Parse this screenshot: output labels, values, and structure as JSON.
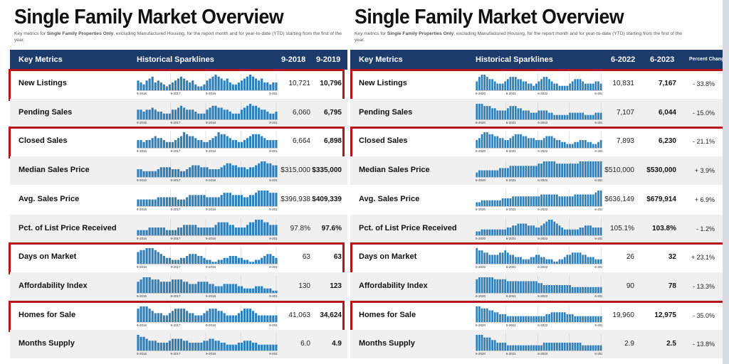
{
  "colors": {
    "header": "#1b3b6a",
    "bar": "#2f7fb8",
    "highlight": "#b8141b"
  },
  "panels": [
    {
      "title": "Single Family Market Overview",
      "subtitle_pre": "Key metrics for ",
      "subtitle_bold": "Single Family Properties Only",
      "subtitle_post": ", excluding Manufactured Housing, for the report month and for year-to-date (YTD) starting from the first of the year.",
      "headers": {
        "metrics": "Key Metrics",
        "sparklines": "Historical Sparklines",
        "col1": "9-2018",
        "col2": "9-2019"
      },
      "axis_labels": [
        "9-2016",
        "9-2017",
        "9-2018",
        "9-2019"
      ],
      "rows": [
        {
          "label": "New Listings",
          "v1": "10,721",
          "v2": "10,796",
          "highlighted": true
        },
        {
          "label": "Pending Sales",
          "v1": "6,060",
          "v2": "6,795",
          "highlighted": false
        },
        {
          "label": "Closed Sales",
          "v1": "6,664",
          "v2": "6,898",
          "highlighted": true
        },
        {
          "label": "Median Sales Price",
          "v1": "$315,000",
          "v2": "$335,000",
          "highlighted": false
        },
        {
          "label": "Avg. Sales Price",
          "v1": "$396,938",
          "v2": "$409,339",
          "highlighted": false
        },
        {
          "label": "Pct. of List Price Received",
          "v1": "97.8%",
          "v2": "97.6%",
          "highlighted": false
        },
        {
          "label": "Days on Market",
          "v1": "63",
          "v2": "63",
          "highlighted": true
        },
        {
          "label": "Affordability Index",
          "v1": "130",
          "v2": "123",
          "highlighted": false
        },
        {
          "label": "Homes for Sale",
          "v1": "41,063",
          "v2": "34,624",
          "highlighted": true
        },
        {
          "label": "Months Supply",
          "v1": "6.0",
          "v2": "4.9",
          "highlighted": false
        }
      ]
    },
    {
      "title": "Single Family Market Overview",
      "subtitle_pre": "Key metrics for ",
      "subtitle_bold": "Single Family Properties Only",
      "subtitle_post": ", excluding Manufactured Housing, for the report month and for year-to-date (YTD) starting from the first of the year.",
      "headers": {
        "metrics": "Key Metrics",
        "sparklines": "Historical Sparklines",
        "col1": "6-2022",
        "col2": "6-2023",
        "pct": "Percent Change"
      },
      "axis_labels": [
        "6-2020",
        "6-2021",
        "6-2022",
        "6-2023"
      ],
      "rows": [
        {
          "label": "New Listings",
          "v1": "10,831",
          "v2": "7,167",
          "pct": "- 33.8%",
          "highlighted": true
        },
        {
          "label": "Pending Sales",
          "v1": "7,107",
          "v2": "6,044",
          "pct": "- 15.0%",
          "highlighted": false
        },
        {
          "label": "Closed Sales",
          "v1": "7,893",
          "v2": "6,230",
          "pct": "- 21.1%",
          "highlighted": true
        },
        {
          "label": "Median Sales Price",
          "v1": "$510,000",
          "v2": "$530,000",
          "pct": "+ 3.9%",
          "highlighted": false
        },
        {
          "label": "Avg. Sales Price",
          "v1": "$636,149",
          "v2": "$679,914",
          "pct": "+ 6.9%",
          "highlighted": false
        },
        {
          "label": "Pct. of List Price Received",
          "v1": "105.1%",
          "v2": "103.8%",
          "pct": "- 1.2%",
          "highlighted": false
        },
        {
          "label": "Days on Market",
          "v1": "26",
          "v2": "32",
          "pct": "+ 23.1%",
          "highlighted": true
        },
        {
          "label": "Affordability Index",
          "v1": "90",
          "v2": "78",
          "pct": "- 13.3%",
          "highlighted": false
        },
        {
          "label": "Homes for Sale",
          "v1": "19,960",
          "v2": "12,975",
          "pct": "- 35.0%",
          "highlighted": true
        },
        {
          "label": "Months Supply",
          "v1": "2.9",
          "v2": "2.5",
          "pct": "- 13.8%",
          "highlighted": false
        }
      ]
    }
  ],
  "chart_data": {
    "type": "bar",
    "description_note": "",
    "sparklines": {
      "left": {
        "New Listings": [
          5,
          4,
          3,
          5,
          6,
          7,
          4,
          5,
          4,
          3,
          2,
          3,
          4,
          5,
          6,
          7,
          6,
          5,
          4,
          5,
          3,
          2,
          2,
          3,
          5,
          6,
          7,
          8,
          7,
          6,
          5,
          6,
          4,
          3,
          3,
          4,
          5,
          6,
          7,
          8,
          7,
          6,
          5,
          6,
          4,
          4,
          3,
          4,
          4
        ],
        "Pending Sales": [
          5,
          5,
          4,
          5,
          5,
          6,
          5,
          4,
          4,
          3,
          3,
          3,
          5,
          5,
          6,
          7,
          6,
          5,
          5,
          5,
          4,
          3,
          3,
          3,
          5,
          6,
          7,
          7,
          6,
          6,
          5,
          5,
          4,
          3,
          3,
          3,
          5,
          6,
          7,
          8,
          7,
          7,
          6,
          5,
          5,
          4,
          3,
          3,
          4
        ],
        "Closed Sales": [
          4,
          4,
          3,
          4,
          4,
          5,
          6,
          5,
          5,
          4,
          3,
          3,
          3,
          4,
          5,
          6,
          8,
          7,
          6,
          6,
          5,
          4,
          4,
          3,
          3,
          4,
          5,
          6,
          8,
          7,
          7,
          6,
          5,
          4,
          4,
          3,
          3,
          4,
          5,
          6,
          7,
          7,
          7,
          6,
          5,
          4,
          4,
          4,
          4
        ],
        "Median Sales Price": [
          4,
          4,
          3,
          3,
          3,
          3,
          3,
          4,
          5,
          5,
          5,
          5,
          4,
          4,
          4,
          3,
          3,
          4,
          5,
          6,
          6,
          6,
          5,
          5,
          5,
          4,
          4,
          4,
          4,
          5,
          6,
          7,
          7,
          6,
          6,
          5,
          5,
          5,
          4,
          5,
          5,
          6,
          7,
          8,
          8,
          7,
          7,
          6,
          6
        ],
        "Avg. Sales Price": [
          3,
          3,
          3,
          3,
          3,
          3,
          3,
          4,
          4,
          4,
          4,
          4,
          4,
          4,
          3,
          3,
          3,
          4,
          5,
          5,
          5,
          5,
          5,
          5,
          4,
          4,
          4,
          4,
          4,
          5,
          6,
          6,
          6,
          5,
          5,
          5,
          5,
          4,
          4,
          5,
          5,
          6,
          7,
          7,
          7,
          7,
          6,
          6,
          6
        ],
        "Pct. of List Price Received": [
          2,
          2,
          2,
          2,
          3,
          3,
          3,
          3,
          3,
          3,
          2,
          2,
          2,
          2,
          3,
          3,
          4,
          4,
          4,
          4,
          4,
          3,
          3,
          3,
          3,
          3,
          3,
          4,
          5,
          5,
          5,
          5,
          4,
          4,
          3,
          3,
          3,
          3,
          4,
          5,
          5,
          6,
          6,
          6,
          5,
          5,
          4,
          4,
          4
        ],
        "Days on Market": [
          6,
          7,
          7,
          8,
          8,
          8,
          7,
          6,
          5,
          4,
          3,
          3,
          2,
          2,
          2,
          3,
          3,
          4,
          5,
          5,
          5,
          4,
          4,
          3,
          2,
          2,
          1,
          1,
          2,
          2,
          3,
          3,
          4,
          4,
          4,
          3,
          3,
          2,
          2,
          1,
          1,
          2,
          2,
          3,
          4,
          5,
          5,
          4,
          3
        ],
        "Affordability Index": [
          5,
          6,
          7,
          7,
          7,
          6,
          6,
          6,
          5,
          5,
          5,
          5,
          6,
          6,
          6,
          6,
          5,
          5,
          4,
          4,
          4,
          5,
          5,
          5,
          5,
          4,
          4,
          3,
          3,
          3,
          4,
          4,
          4,
          4,
          4,
          3,
          3,
          2,
          2,
          2,
          2,
          3,
          3,
          3,
          2,
          2,
          2,
          1,
          1
        ],
        "Homes for Sale": [
          6,
          7,
          7,
          7,
          6,
          5,
          4,
          4,
          4,
          3,
          3,
          4,
          5,
          6,
          6,
          6,
          6,
          5,
          4,
          4,
          3,
          3,
          3,
          4,
          5,
          6,
          6,
          6,
          5,
          5,
          4,
          3,
          3,
          3,
          3,
          4,
          5,
          6,
          6,
          6,
          5,
          4,
          3,
          3,
          3,
          3,
          3,
          3,
          3
        ],
        "Months Supply": [
          8,
          7,
          7,
          6,
          5,
          5,
          5,
          4,
          4,
          4,
          4,
          5,
          6,
          6,
          6,
          6,
          5,
          5,
          4,
          4,
          4,
          4,
          4,
          5,
          5,
          6,
          6,
          5,
          5,
          4,
          4,
          3,
          3,
          3,
          3,
          4,
          4,
          5,
          5,
          5,
          4,
          4,
          3,
          3,
          3,
          3,
          3,
          3,
          3
        ]
      },
      "right": {
        "New Listings": [
          4,
          6,
          7,
          7,
          6,
          5,
          5,
          4,
          3,
          3,
          3,
          4,
          5,
          6,
          6,
          6,
          5,
          5,
          4,
          4,
          3,
          3,
          2,
          3,
          4,
          5,
          6,
          6,
          5,
          4,
          3,
          3,
          2,
          2,
          2,
          2,
          3,
          4,
          5,
          5,
          5,
          4,
          3,
          3,
          3,
          3,
          4,
          4,
          3
        ],
        "Pending Sales": [
          7,
          7,
          7,
          6,
          6,
          6,
          5,
          5,
          4,
          4,
          4,
          4,
          5,
          6,
          6,
          6,
          5,
          5,
          4,
          4,
          4,
          3,
          3,
          3,
          4,
          4,
          4,
          4,
          3,
          3,
          2,
          2,
          2,
          2,
          2,
          2,
          3,
          3,
          3,
          3,
          3,
          3,
          2,
          2,
          2,
          2,
          3,
          3,
          3
        ],
        "Closed Sales": [
          4,
          5,
          7,
          8,
          8,
          7,
          7,
          6,
          6,
          5,
          5,
          4,
          4,
          5,
          6,
          7,
          7,
          7,
          6,
          6,
          5,
          5,
          5,
          4,
          4,
          4,
          5,
          6,
          6,
          6,
          5,
          4,
          4,
          3,
          3,
          2,
          2,
          2,
          3,
          3,
          4,
          4,
          4,
          3,
          3,
          2,
          2,
          3,
          4
        ],
        "Median Sales Price": [
          2,
          3,
          3,
          3,
          3,
          3,
          3,
          3,
          3,
          4,
          4,
          4,
          4,
          5,
          5,
          5,
          5,
          5,
          5,
          5,
          5,
          5,
          5,
          5,
          6,
          6,
          7,
          7,
          7,
          7,
          7,
          6,
          6,
          6,
          6,
          6,
          6,
          6,
          6,
          6,
          7,
          7,
          7,
          7,
          7,
          7,
          7,
          7,
          7
        ],
        "Avg. Sales Price": [
          2,
          2,
          3,
          3,
          3,
          3,
          3,
          3,
          3,
          3,
          4,
          4,
          4,
          4,
          5,
          5,
          5,
          5,
          5,
          5,
          5,
          5,
          5,
          5,
          5,
          6,
          6,
          6,
          6,
          6,
          6,
          6,
          5,
          5,
          5,
          5,
          5,
          5,
          6,
          6,
          6,
          6,
          6,
          6,
          6,
          6,
          7,
          8,
          8
        ],
        "Pct. of List Price Received": [
          2,
          2,
          3,
          3,
          3,
          3,
          3,
          3,
          3,
          3,
          3,
          3,
          4,
          4,
          5,
          5,
          6,
          6,
          6,
          6,
          5,
          5,
          5,
          4,
          4,
          5,
          6,
          7,
          8,
          8,
          7,
          6,
          5,
          4,
          3,
          3,
          3,
          3,
          3,
          3,
          4,
          4,
          5,
          5,
          5,
          4,
          4,
          4,
          4
        ],
        "Days on Market": [
          7,
          6,
          6,
          5,
          5,
          4,
          4,
          4,
          4,
          5,
          5,
          6,
          5,
          4,
          4,
          3,
          3,
          3,
          2,
          2,
          2,
          3,
          3,
          4,
          4,
          3,
          3,
          2,
          2,
          2,
          1,
          1,
          2,
          2,
          3,
          4,
          4,
          5,
          5,
          5,
          5,
          4,
          4,
          3,
          3,
          3,
          2,
          2,
          2
        ],
        "Affordability Index": [
          7,
          8,
          8,
          8,
          8,
          8,
          8,
          7,
          7,
          7,
          7,
          7,
          6,
          6,
          6,
          6,
          6,
          6,
          6,
          6,
          6,
          6,
          6,
          6,
          5,
          5,
          4,
          4,
          4,
          4,
          4,
          4,
          4,
          4,
          4,
          4,
          4,
          3,
          3,
          3,
          3,
          3,
          3,
          3,
          3,
          3,
          3,
          3,
          3
        ],
        "Homes for Sale": [
          8,
          8,
          7,
          7,
          7,
          6,
          6,
          5,
          5,
          4,
          4,
          4,
          3,
          3,
          3,
          3,
          3,
          3,
          3,
          3,
          3,
          3,
          3,
          3,
          3,
          3,
          3,
          4,
          4,
          5,
          5,
          5,
          5,
          5,
          5,
          4,
          4,
          4,
          3,
          3,
          3,
          3,
          3,
          3,
          3,
          3,
          3,
          3,
          3
        ],
        "Months Supply": [
          6,
          6,
          6,
          5,
          5,
          5,
          4,
          4,
          3,
          3,
          3,
          3,
          2,
          2,
          2,
          2,
          2,
          2,
          2,
          2,
          2,
          2,
          2,
          2,
          2,
          2,
          3,
          3,
          3,
          3,
          3,
          3,
          3,
          3,
          3,
          3,
          3,
          3,
          3,
          3,
          3,
          2,
          2,
          2,
          2,
          2,
          2,
          2,
          2
        ]
      }
    }
  }
}
